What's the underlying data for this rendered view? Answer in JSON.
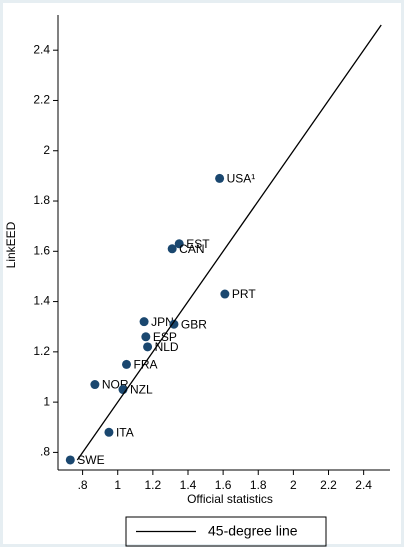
{
  "chart_data": {
    "type": "scatter",
    "x_label": "Official statistics",
    "y_label": "LinkEED",
    "xlim": [
      0.66,
      2.55
    ],
    "ylim": [
      0.73,
      2.54
    ],
    "xticks": [
      {
        "value": 0.8,
        "label": ".8"
      },
      1,
      1.2,
      1.4,
      1.6,
      1.8,
      2,
      2.2,
      2.4
    ],
    "yticks": [
      {
        "value": 0.8,
        "label": ".8"
      },
      1,
      1.2,
      1.4,
      1.6,
      1.8,
      2,
      2.2,
      2.4
    ],
    "series": [
      {
        "color": "#1a476f",
        "labels": [
          "USA¹",
          "EST",
          "CAN",
          "PRT",
          "JPN",
          "GBR",
          "ESP",
          "NLD",
          "FRA",
          "NOR",
          "NZL",
          "ITA",
          "SWE"
        ],
        "x": [
          1.58,
          1.35,
          1.31,
          1.61,
          1.15,
          1.32,
          1.16,
          1.17,
          1.05,
          0.87,
          1.03,
          0.95,
          0.73
        ],
        "values": [
          1.89,
          1.63,
          1.61,
          1.43,
          1.32,
          1.31,
          1.26,
          1.22,
          1.15,
          1.07,
          1.05,
          0.88,
          0.77
        ]
      },
      {
        "name": "45-degree line",
        "color": "#000000",
        "line": true,
        "x": [
          0.77,
          2.5
        ],
        "values": [
          0.77,
          2.5
        ]
      }
    ]
  }
}
